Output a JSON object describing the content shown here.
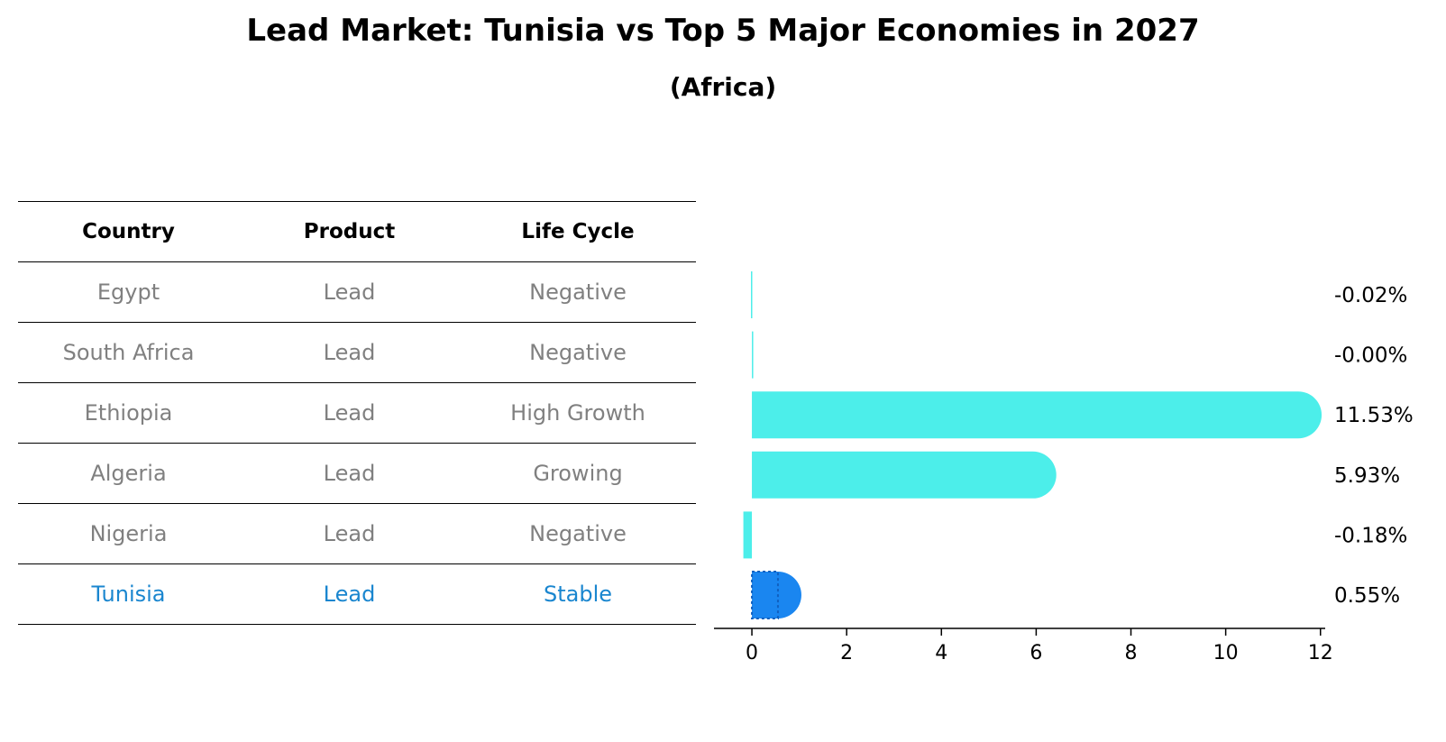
{
  "title": "Lead Market: Tunisia vs Top 5 Major Economies in 2027",
  "subtitle": "(Africa)",
  "table": {
    "headers": [
      "Country",
      "Product",
      "Life Cycle"
    ],
    "rows": [
      {
        "country": "Egypt",
        "product": "Lead",
        "life_cycle": "Negative"
      },
      {
        "country": "South Africa",
        "product": "Lead",
        "life_cycle": "Negative"
      },
      {
        "country": "Ethiopia",
        "product": "Lead",
        "life_cycle": "High Growth"
      },
      {
        "country": "Algeria",
        "product": "Lead",
        "life_cycle": "Growing"
      },
      {
        "country": "Nigeria",
        "product": "Lead",
        "life_cycle": "Negative"
      },
      {
        "country": "Tunisia",
        "product": "Lead",
        "life_cycle": "Stable"
      }
    ],
    "highlight_row": "Tunisia"
  },
  "chart_data": {
    "type": "bar",
    "orientation": "horizontal",
    "categories": [
      "Egypt",
      "South Africa",
      "Ethiopia",
      "Algeria",
      "Nigeria",
      "Tunisia"
    ],
    "values": [
      -0.02,
      -0.0,
      11.53,
      5.93,
      -0.18,
      0.55
    ],
    "value_labels": [
      "-0.02%",
      "-0.00%",
      "11.53%",
      "5.93%",
      "-0.18%",
      "0.55%"
    ],
    "highlight": "Tunisia",
    "xlim": [
      -0.8,
      12.1
    ],
    "xticks": [
      0,
      2,
      4,
      6,
      8,
      10,
      12
    ],
    "grid": false,
    "colors": {
      "bar": "#4ceeea",
      "highlight": "#1a86f0"
    }
  }
}
